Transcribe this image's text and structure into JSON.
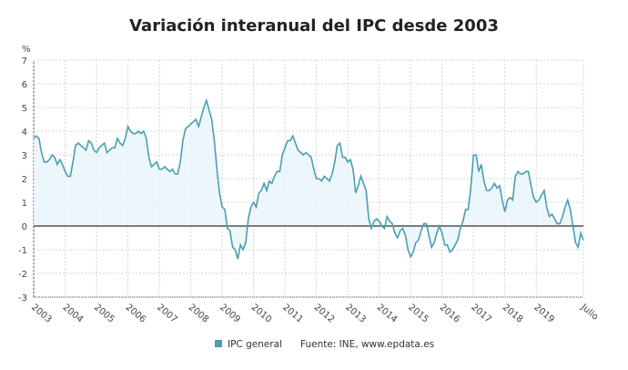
{
  "chart_data": {
    "type": "area",
    "title": "Variación interanual del IPC desde 2003",
    "ylabel": "%",
    "xlabel": "",
    "ylim": [
      -3,
      7
    ],
    "yticks": [
      7,
      6,
      5,
      4,
      3,
      2,
      1,
      0,
      -1,
      -2,
      -3
    ],
    "xticks": [
      "2003",
      "2004",
      "2005",
      "2006",
      "2007",
      "2008",
      "2009",
      "2010",
      "2011",
      "2012",
      "2013",
      "2014",
      "2015",
      "2016",
      "2017",
      "2018",
      "2019",
      "Julio"
    ],
    "grid": true,
    "legend_position": "bottom",
    "start": "2003-01",
    "end": "2020-07",
    "frequency": "monthly",
    "series": [
      {
        "name": "IPC general",
        "color": "#4a9fb0",
        "values": [
          3.7,
          3.8,
          3.7,
          3.1,
          2.7,
          2.7,
          2.8,
          3.0,
          2.9,
          2.6,
          2.8,
          2.6,
          2.3,
          2.1,
          2.1,
          2.7,
          3.4,
          3.5,
          3.4,
          3.3,
          3.2,
          3.6,
          3.5,
          3.2,
          3.1,
          3.3,
          3.4,
          3.5,
          3.1,
          3.2,
          3.3,
          3.3,
          3.7,
          3.5,
          3.4,
          3.7,
          4.2,
          4.0,
          3.9,
          3.9,
          4.0,
          3.9,
          4.0,
          3.7,
          2.9,
          2.5,
          2.6,
          2.7,
          2.4,
          2.4,
          2.5,
          2.4,
          2.3,
          2.4,
          2.2,
          2.2,
          2.7,
          3.6,
          4.1,
          4.2,
          4.3,
          4.4,
          4.5,
          4.2,
          4.6,
          5.0,
          5.3,
          4.9,
          4.5,
          3.6,
          2.4,
          1.4,
          0.8,
          0.7,
          -0.1,
          -0.2,
          -0.9,
          -1.0,
          -1.4,
          -0.8,
          -1.0,
          -0.7,
          0.3,
          0.8,
          1.0,
          0.8,
          1.4,
          1.5,
          1.8,
          1.5,
          1.9,
          1.8,
          2.1,
          2.3,
          2.3,
          3.0,
          3.3,
          3.6,
          3.6,
          3.8,
          3.5,
          3.2,
          3.1,
          3.0,
          3.1,
          3.0,
          2.9,
          2.4,
          2.0,
          2.0,
          1.9,
          2.1,
          2.0,
          1.9,
          2.2,
          2.7,
          3.4,
          3.5,
          2.9,
          2.9,
          2.7,
          2.8,
          2.4,
          1.4,
          1.7,
          2.1,
          1.8,
          1.5,
          0.3,
          -0.1,
          0.2,
          0.3,
          0.2,
          0.0,
          -0.1,
          0.4,
          0.2,
          0.1,
          -0.3,
          -0.5,
          -0.2,
          -0.1,
          -0.4,
          -1.0,
          -1.3,
          -1.1,
          -0.7,
          -0.6,
          -0.2,
          0.1,
          0.1,
          -0.4,
          -0.9,
          -0.7,
          -0.3,
          0.0,
          -0.3,
          -0.8,
          -0.8,
          -1.1,
          -1.0,
          -0.8,
          -0.6,
          -0.1,
          0.2,
          0.7,
          0.7,
          1.6,
          3.0,
          3.0,
          2.3,
          2.6,
          1.9,
          1.5,
          1.5,
          1.6,
          1.8,
          1.6,
          1.7,
          1.1,
          0.6,
          1.1,
          1.2,
          1.1,
          2.1,
          2.3,
          2.2,
          2.2,
          2.3,
          2.3,
          1.7,
          1.2,
          1.0,
          1.1,
          1.3,
          1.5,
          0.8,
          0.4,
          0.5,
          0.3,
          0.1,
          0.1,
          0.4,
          0.8,
          1.1,
          0.7,
          0.0,
          -0.7,
          -0.9,
          -0.3,
          -0.6
        ]
      }
    ],
    "source": "Fuente: INE, www.epdata.es"
  }
}
